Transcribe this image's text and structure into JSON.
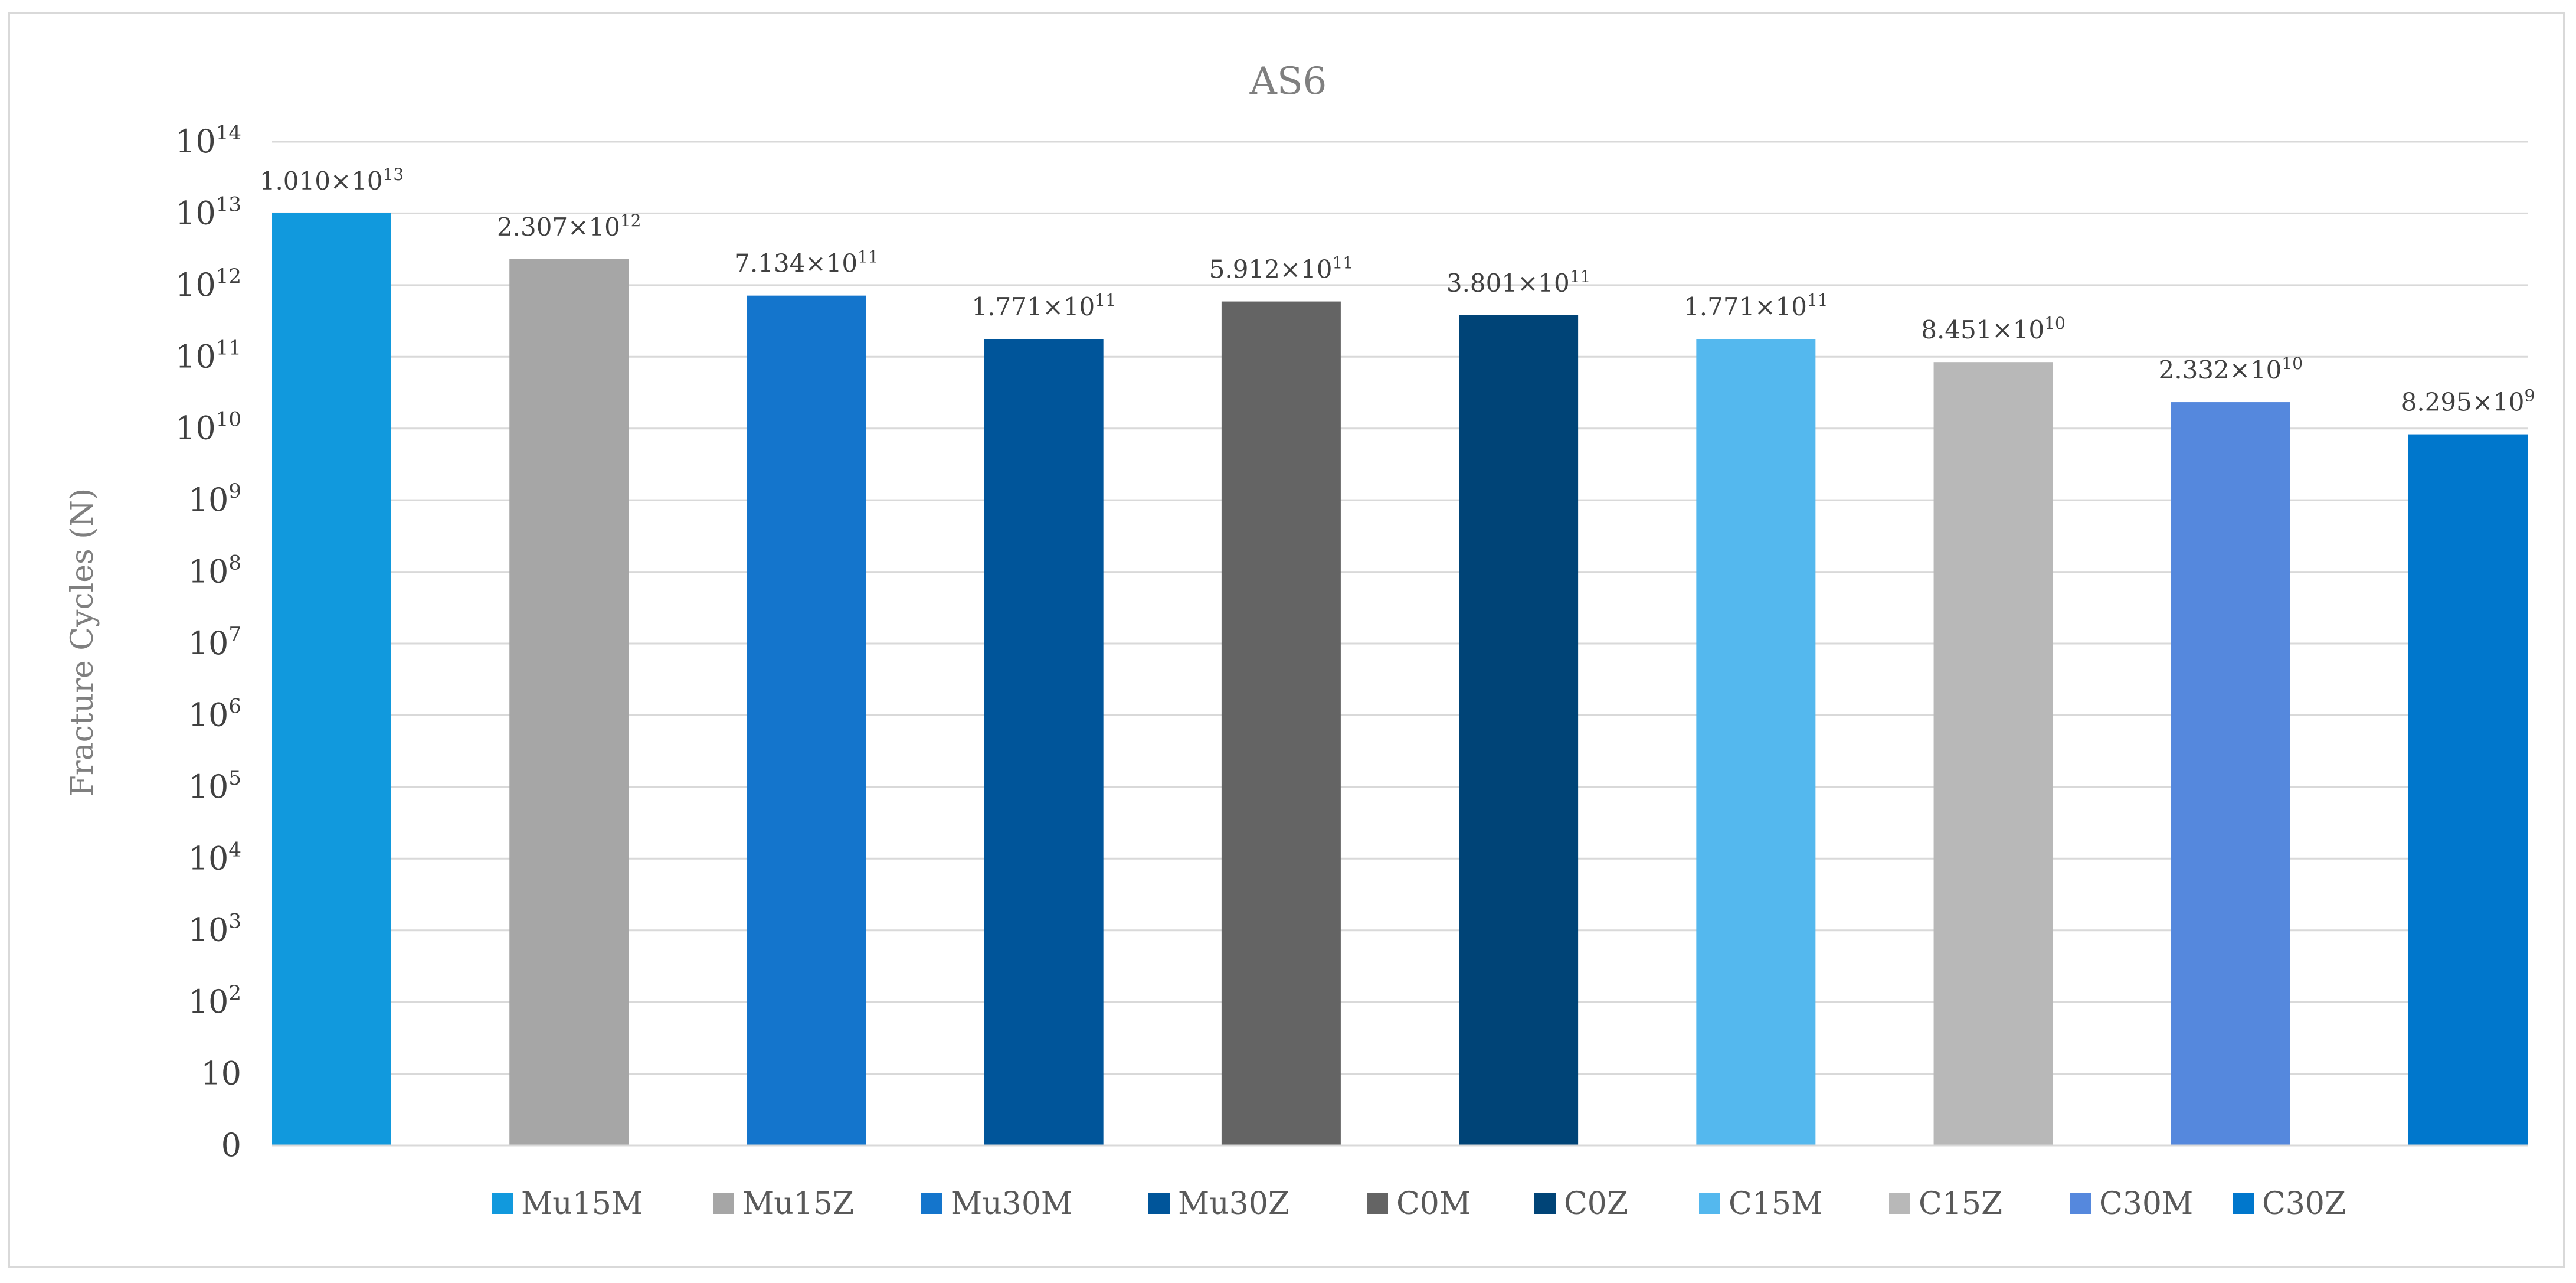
{
  "chart_data": {
    "type": "bar",
    "title": "AS6",
    "xlabel": "",
    "ylabel": "Fracture Cycles (N)",
    "yscale": "log",
    "ylim": [
      1,
      100000000000000.0
    ],
    "grid": true,
    "legend_position": "bottom",
    "y_ticks": [
      {
        "value": 1,
        "base": "0",
        "exp": ""
      },
      {
        "value": 10,
        "base": "10",
        "exp": ""
      },
      {
        "value": 100,
        "base": "10",
        "exp": "2"
      },
      {
        "value": 1000,
        "base": "10",
        "exp": "3"
      },
      {
        "value": 10000,
        "base": "10",
        "exp": "4"
      },
      {
        "value": 100000,
        "base": "10",
        "exp": "5"
      },
      {
        "value": 1000000,
        "base": "10",
        "exp": "6"
      },
      {
        "value": 10000000,
        "base": "10",
        "exp": "7"
      },
      {
        "value": 100000000,
        "base": "10",
        "exp": "8"
      },
      {
        "value": 1000000000,
        "base": "10",
        "exp": "9"
      },
      {
        "value": 10000000000,
        "base": "10",
        "exp": "10"
      },
      {
        "value": 100000000000,
        "base": "10",
        "exp": "11"
      },
      {
        "value": 1000000000000,
        "base": "10",
        "exp": "12"
      },
      {
        "value": 10000000000000,
        "base": "10",
        "exp": "13"
      },
      {
        "value": 100000000000000,
        "base": "10",
        "exp": "14"
      }
    ],
    "series": [
      {
        "name": "Mu15M",
        "value": 10100000000000.0,
        "label_mant": "1.010×10",
        "label_exp": "13",
        "color": "#1199dd"
      },
      {
        "name": "Mu15Z",
        "value": 2307000000000.0,
        "label_mant": "2.307×10",
        "label_exp": "12",
        "color": "#a6a6a6"
      },
      {
        "name": "Mu30M",
        "value": 713400000000.0,
        "label_mant": "7.134×10",
        "label_exp": "11",
        "color": "#1475cc"
      },
      {
        "name": "Mu30Z",
        "value": 177100000000.0,
        "label_mant": "1.771×10",
        "label_exp": "11",
        "color": "#00559a"
      },
      {
        "name": "C0M",
        "value": 591200000000.0,
        "label_mant": "5.912×10",
        "label_exp": "11",
        "color": "#646464"
      },
      {
        "name": "C0Z",
        "value": 380100000000.0,
        "label_mant": "3.801×10",
        "label_exp": "11",
        "color": "#004477"
      },
      {
        "name": "C15M",
        "value": 177100000000.0,
        "label_mant": "1.771×10",
        "label_exp": "11",
        "color": "#54b8ee"
      },
      {
        "name": "C15Z",
        "value": 84510000000.0,
        "label_mant": "8.451×10",
        "label_exp": "10",
        "color": "#b8b8b8"
      },
      {
        "name": "C30M",
        "value": 23320000000.0,
        "label_mant": "2.332×10",
        "label_exp": "10",
        "color": "#5588dd"
      },
      {
        "name": "C30Z",
        "value": 8295000000.0,
        "label_mant": "8.295×10",
        "label_exp": "9",
        "color": "#0077cc"
      }
    ]
  }
}
